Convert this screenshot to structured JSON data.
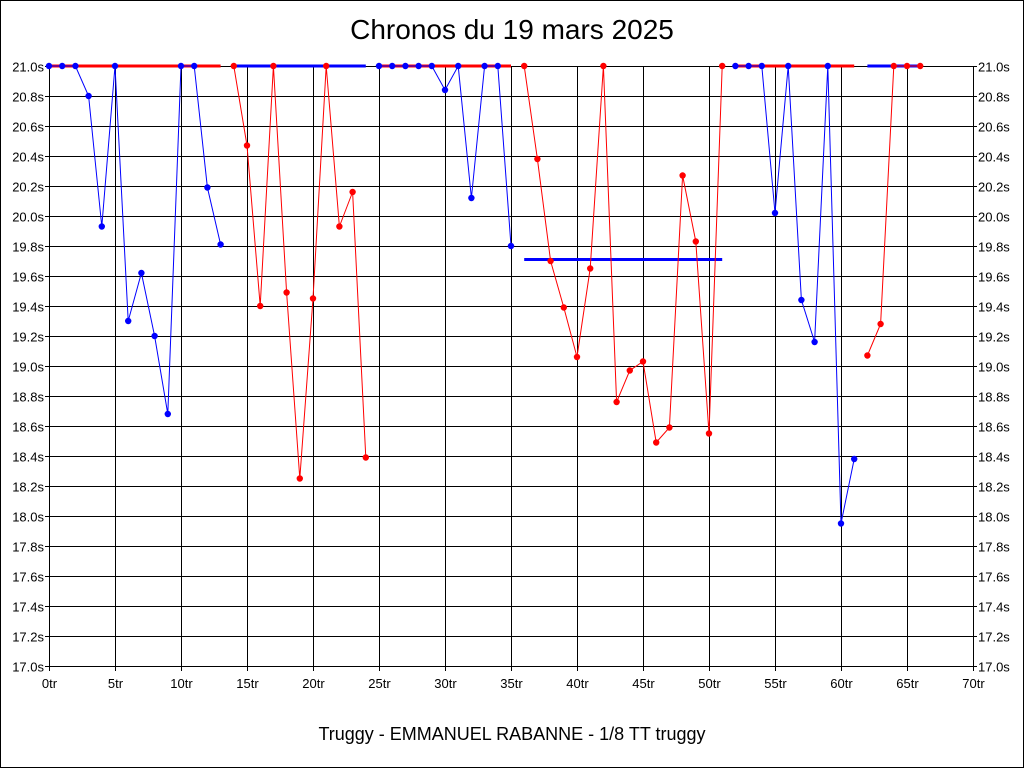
{
  "chart_data": {
    "type": "line",
    "title": "Chronos du 19 mars 2025",
    "subtitle": "Truggy - EMMANUEL RABANNE - 1/8 TT truggy",
    "xlim": [
      0,
      70
    ],
    "ylim": [
      17.0,
      21.0
    ],
    "grid": true,
    "x_ticks": [
      "0tr",
      "5tr",
      "10tr",
      "15tr",
      "20tr",
      "25tr",
      "30tr",
      "35tr",
      "40tr",
      "45tr",
      "50tr",
      "55tr",
      "60tr",
      "65tr",
      "70tr"
    ],
    "y_ticks": [
      "21.0s",
      "20.8s",
      "20.6s",
      "20.4s",
      "20.2s",
      "20.0s",
      "19.8s",
      "19.6s",
      "19.4s",
      "19.2s",
      "19.0s",
      "18.8s",
      "18.6s",
      "18.4s",
      "18.2s",
      "18.0s",
      "17.8s",
      "17.6s",
      "17.4s",
      "17.2s",
      "17.0s"
    ],
    "colors": {
      "blue": "#0000ff",
      "red": "#ff0000"
    },
    "series": [
      {
        "color": "blue",
        "x": [
          0,
          1,
          2,
          3,
          4,
          5,
          6,
          7,
          8,
          9,
          10,
          11,
          12,
          13
        ],
        "y": [
          21.0,
          21.0,
          21.0,
          20.8,
          19.93,
          21.0,
          19.3,
          19.62,
          19.2,
          18.68,
          21.0,
          21.0,
          20.19,
          19.81
        ]
      },
      {
        "color": "red",
        "x": [
          14,
          15,
          16,
          17,
          18,
          19,
          20,
          21,
          22,
          23,
          24
        ],
        "y": [
          21.0,
          20.47,
          19.4,
          21.0,
          19.49,
          18.25,
          19.45,
          21.0,
          19.93,
          20.16,
          18.39
        ]
      },
      {
        "color": "blue",
        "x": [
          25,
          26,
          27,
          28,
          29,
          30,
          31,
          32,
          33,
          34,
          35
        ],
        "y": [
          21.0,
          21.0,
          21.0,
          21.0,
          21.0,
          20.84,
          21.0,
          20.12,
          21.0,
          21.0,
          19.8
        ]
      },
      {
        "color": "red",
        "x": [
          36,
          37,
          38,
          39,
          40,
          41,
          42,
          43,
          44,
          45,
          46,
          47,
          48,
          49,
          50,
          51
        ],
        "y": [
          21.0,
          20.38,
          19.7,
          19.39,
          19.06,
          19.65,
          21.0,
          18.76,
          18.97,
          19.03,
          18.49,
          18.59,
          20.27,
          19.83,
          18.55,
          21.0
        ]
      },
      {
        "color": "blue",
        "x": [
          52,
          53,
          54,
          55,
          56,
          57,
          58,
          59,
          60,
          61
        ],
        "y": [
          21.0,
          21.0,
          21.0,
          20.02,
          21.0,
          19.44,
          19.16,
          21.0,
          17.95,
          18.38
        ]
      },
      {
        "color": "red",
        "x": [
          62,
          63,
          64,
          65,
          66
        ],
        "y": [
          19.07,
          19.28,
          21.0,
          21.0,
          21.0
        ]
      }
    ],
    "averages": [
      {
        "color": "red",
        "x": [
          0,
          13
        ],
        "y": 21.0
      },
      {
        "color": "blue",
        "x": [
          14,
          24
        ],
        "y": 21.0
      },
      {
        "color": "red",
        "x": [
          25,
          35
        ],
        "y": 21.0
      },
      {
        "color": "blue",
        "x": [
          36,
          51
        ],
        "y": 19.71
      },
      {
        "color": "red",
        "x": [
          52,
          61
        ],
        "y": 21.0
      },
      {
        "color": "blue",
        "x": [
          62,
          66
        ],
        "y": 21.0
      }
    ]
  }
}
